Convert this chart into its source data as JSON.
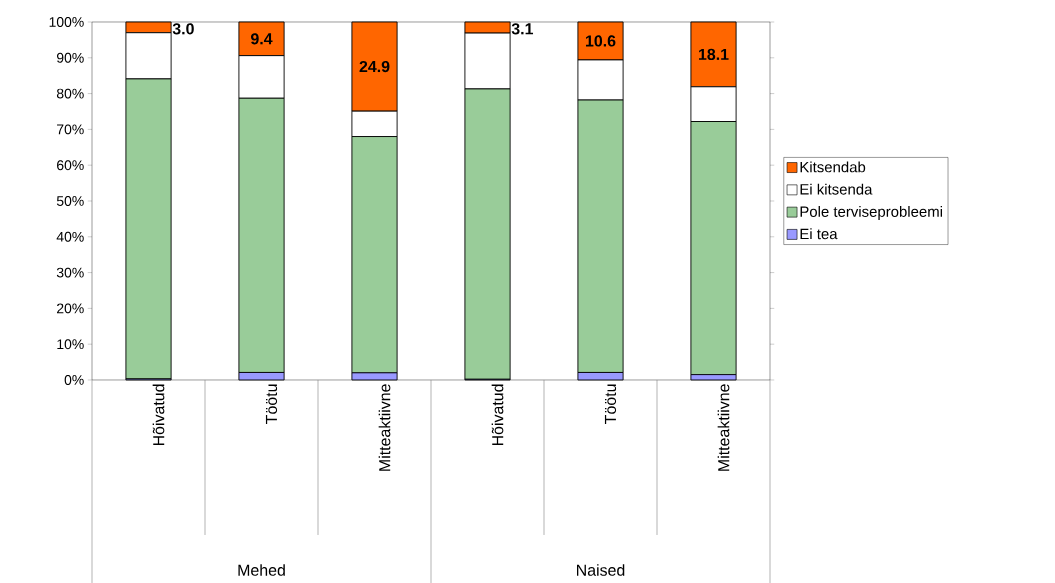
{
  "chart_data": {
    "type": "bar",
    "stacked": true,
    "categories": [
      "Hõivatud",
      "Töötu",
      "Mitteaktiivne",
      "Hõivatud",
      "Töötu",
      "Mitteaktiivne"
    ],
    "series": [
      {
        "name": "Ei tea",
        "color": "#9999ff",
        "values": [
          0.3,
          2.1,
          2.0,
          0.2,
          2.1,
          1.5
        ]
      },
      {
        "name": "Pole terviseprobleemi",
        "color": "#99cc99",
        "values": [
          83.8,
          76.6,
          66.0,
          81.1,
          76.1,
          70.7
        ]
      },
      {
        "name": "Ei kitsenda",
        "color": "#ffffff",
        "values": [
          12.9,
          11.9,
          7.1,
          15.6,
          11.2,
          9.7
        ]
      },
      {
        "name": "Kitsendab",
        "color": "#ff6600",
        "values": [
          3.0,
          9.4,
          24.9,
          3.1,
          10.6,
          18.1
        ],
        "value_labels": [
          "3.0",
          "9.4",
          "24.9",
          "3.1",
          "10.6",
          "18.1"
        ]
      }
    ],
    "ylim": [
      0,
      100
    ],
    "yticks": [
      {
        "value": 0,
        "label": "0%"
      },
      {
        "value": 10,
        "label": "10%"
      },
      {
        "value": 20,
        "label": "20%"
      },
      {
        "value": 30,
        "label": "30%"
      },
      {
        "value": 40,
        "label": "40%"
      },
      {
        "value": 50,
        "label": "50%"
      },
      {
        "value": 60,
        "label": "60%"
      },
      {
        "value": 70,
        "label": "70%"
      },
      {
        "value": 80,
        "label": "80%"
      },
      {
        "value": 90,
        "label": "90%"
      },
      {
        "value": 100,
        "label": "100%"
      }
    ],
    "annotations": [
      "Mehed",
      "Naised"
    ],
    "legend": "right",
    "grid": false
  }
}
